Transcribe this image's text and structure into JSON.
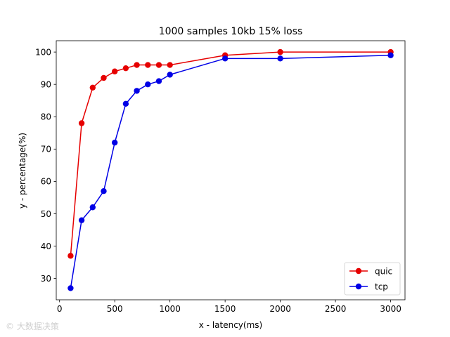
{
  "chart_data": {
    "type": "line",
    "title": "1000 samples 10kb 15% loss",
    "xlabel": "x - latency(ms)",
    "ylabel": "y - percentage(%)",
    "xlim": [
      -30,
      3130
    ],
    "ylim": [
      23.4,
      103.5
    ],
    "xticks": [
      0,
      500,
      1000,
      1500,
      2000,
      2500,
      3000
    ],
    "yticks": [
      30,
      40,
      50,
      60,
      70,
      80,
      90,
      100
    ],
    "grid": false,
    "legend_position": "lower-right",
    "series": [
      {
        "name": "quic",
        "color": "#e60000",
        "x": [
          100,
          200,
          300,
          400,
          500,
          600,
          700,
          800,
          900,
          1000,
          1500,
          2000,
          3000
        ],
        "y": [
          37,
          78,
          89,
          92,
          94,
          95,
          96,
          96,
          96,
          96,
          99,
          100,
          100
        ]
      },
      {
        "name": "tcp",
        "color": "#0000e6",
        "x": [
          100,
          200,
          300,
          400,
          500,
          600,
          700,
          800,
          900,
          1000,
          1500,
          2000,
          3000
        ],
        "y": [
          27,
          48,
          52,
          57,
          72,
          84,
          88,
          90,
          91,
          93,
          98,
          98,
          99
        ]
      }
    ]
  },
  "watermark": {
    "text": "© 大数据决策"
  }
}
